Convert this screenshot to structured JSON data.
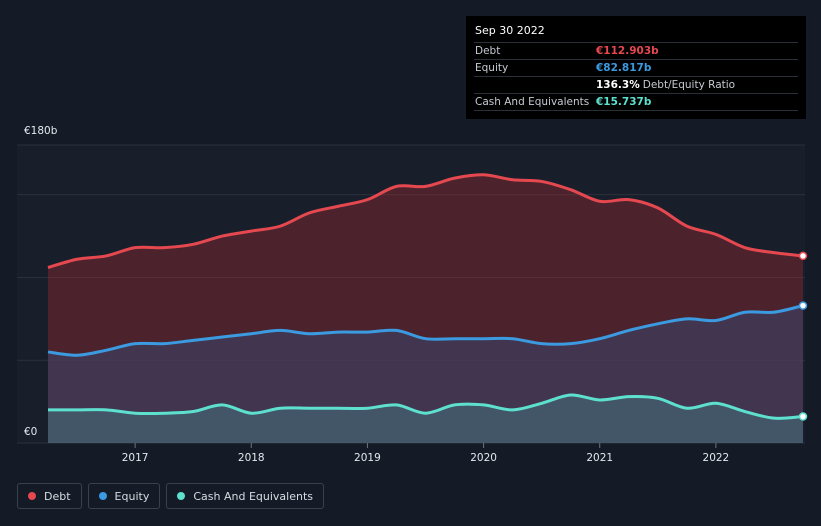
{
  "tooltip": {
    "date": "Sep 30 2022",
    "rows": [
      {
        "label": "Debt",
        "value": "€112.903b",
        "color": "#e64850"
      },
      {
        "label": "Equity",
        "value": "€82.817b",
        "color": "#3b9ae0"
      },
      {
        "label": "",
        "value": "136.3%",
        "suffix": "Debt/Equity Ratio",
        "color": "#ffffff"
      },
      {
        "label": "Cash And Equivalents",
        "value": "€15.737b",
        "color": "#5ee0cf"
      }
    ]
  },
  "legend": [
    {
      "label": "Debt",
      "color": "#e64850"
    },
    {
      "label": "Equity",
      "color": "#3b9ae0"
    },
    {
      "label": "Cash And Equivalents",
      "color": "#5ee0cf"
    }
  ],
  "chart_data": {
    "type": "area",
    "title": "",
    "xlabel": "",
    "ylabel": "",
    "y_top_label": "€180b",
    "y_bottom_label": "€0",
    "ylim": [
      0,
      180
    ],
    "xlim": [
      2016.25,
      2022.75
    ],
    "xticks": [
      2017,
      2018,
      2019,
      2020,
      2021,
      2022
    ],
    "series": [
      {
        "name": "Debt",
        "color": "#e64850",
        "x": [
          2016.25,
          2016.5,
          2016.75,
          2017.0,
          2017.25,
          2017.5,
          2017.75,
          2018.0,
          2018.25,
          2018.5,
          2018.75,
          2019.0,
          2019.25,
          2019.5,
          2019.75,
          2020.0,
          2020.25,
          2020.5,
          2020.75,
          2021.0,
          2021.25,
          2021.5,
          2021.75,
          2022.0,
          2022.25,
          2022.5,
          2022.75
        ],
        "values": [
          106,
          111,
          113,
          118,
          118,
          120,
          125,
          128,
          131,
          139,
          143,
          147,
          155,
          155,
          160,
          162,
          159,
          158,
          153,
          146,
          147,
          142,
          131,
          126,
          118,
          115,
          113
        ]
      },
      {
        "name": "Equity",
        "color": "#3b9ae0",
        "x": [
          2016.25,
          2016.5,
          2016.75,
          2017.0,
          2017.25,
          2017.5,
          2017.75,
          2018.0,
          2018.25,
          2018.5,
          2018.75,
          2019.0,
          2019.25,
          2019.5,
          2019.75,
          2020.0,
          2020.25,
          2020.5,
          2020.75,
          2021.0,
          2021.25,
          2021.5,
          2021.75,
          2022.0,
          2022.25,
          2022.5,
          2022.75
        ],
        "values": [
          55,
          53,
          56,
          60,
          60,
          62,
          64,
          66,
          68,
          66,
          67,
          67,
          68,
          63,
          63,
          63,
          63,
          60,
          60,
          63,
          68,
          72,
          75,
          74,
          79,
          79,
          83
        ]
      },
      {
        "name": "Cash And Equivalents",
        "color": "#5ee0cf",
        "x": [
          2016.25,
          2016.5,
          2016.75,
          2017.0,
          2017.25,
          2017.5,
          2017.75,
          2018.0,
          2018.25,
          2018.5,
          2018.75,
          2019.0,
          2019.25,
          2019.5,
          2019.75,
          2020.0,
          2020.25,
          2020.5,
          2020.75,
          2021.0,
          2021.25,
          2021.5,
          2021.75,
          2022.0,
          2022.25,
          2022.5,
          2022.75
        ],
        "values": [
          20,
          20,
          20,
          18,
          18,
          19,
          23,
          18,
          21,
          21,
          21,
          21,
          23,
          18,
          23,
          23,
          20,
          24,
          29,
          26,
          28,
          27,
          21,
          24,
          19,
          15,
          16
        ]
      }
    ]
  }
}
